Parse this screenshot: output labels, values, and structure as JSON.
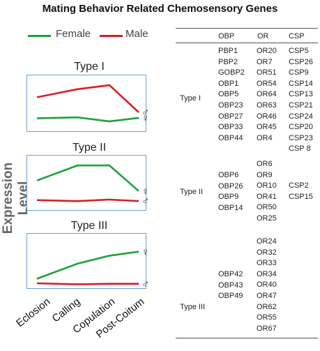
{
  "title": "Mating Behavior Related Chemosensory Genes",
  "colors": {
    "female": "#1aa33a",
    "male": "#d61f26",
    "panel_border": "#6aa3d6"
  },
  "chart_data": {
    "type": "line",
    "ylabel": "Expression Level",
    "categories": [
      "Eclosion",
      "Calling",
      "Copulation",
      "Post-Coitum"
    ],
    "legend": [
      {
        "label": "Female",
        "color": "#1aa33a"
      },
      {
        "label": "Male",
        "color": "#d61f26"
      }
    ],
    "ylim": [
      0,
      10
    ],
    "panels": [
      {
        "title": "Type I",
        "series": [
          {
            "key": "male",
            "symbol": "♂",
            "values": [
              6.2,
              7.8,
              8.6,
              3.2
            ]
          },
          {
            "key": "female",
            "symbol": "♀",
            "values": [
              2.0,
              2.2,
              1.4,
              2.1
            ]
          }
        ]
      },
      {
        "title": "Type II",
        "series": [
          {
            "key": "female",
            "symbol": "♀",
            "values": [
              5.6,
              8.6,
              8.6,
              3.5
            ]
          },
          {
            "key": "male",
            "symbol": "♂",
            "values": [
              1.7,
              1.5,
              1.8,
              1.5
            ]
          }
        ]
      },
      {
        "title": "Type III",
        "series": [
          {
            "key": "female",
            "symbol": "♀",
            "values": [
              1.6,
              4.6,
              6.2,
              7.0
            ]
          },
          {
            "key": "male",
            "symbol": "♂",
            "values": [
              0.7,
              0.5,
              0.6,
              0.6
            ]
          }
        ]
      }
    ]
  },
  "table": {
    "headers": [
      "OBP",
      "OR",
      "CSP"
    ],
    "groups": [
      {
        "label": "Type I",
        "OBP": [
          "PBP1",
          "PBP2",
          "GOBP2",
          "OBP1",
          "OBP5",
          "OBP23",
          "OBP27",
          "OBP33",
          "OBP44"
        ],
        "OR": [
          "OR20",
          "OR7",
          "OR51",
          "OR54",
          "OR64",
          "OR63",
          "OR46",
          "OR45",
          "OR4"
        ],
        "CSP": [
          "CSP5",
          "CSP26",
          "CSP9",
          "CSP14",
          "CSP13",
          "CSP21",
          "CSP24",
          "CSP20",
          "CSP23",
          "CSP 8"
        ]
      },
      {
        "label": "Type II",
        "OBP": [
          "OBP6",
          "OBP26",
          "OBP9",
          "OBP14"
        ],
        "OR": [
          "OR6",
          "OR9",
          "OR10",
          "OR41",
          "OR50",
          "OR25"
        ],
        "CSP": [
          "CSP2",
          "CSP15"
        ]
      },
      {
        "label": "Type III",
        "OBP": [
          "OBP42",
          "OBP43",
          "OBP49"
        ],
        "OR": [
          "OR24",
          "OR32",
          "OR33",
          "OR34",
          "OR40",
          "OR47",
          "OR62",
          "OR55",
          "OR67"
        ],
        "CSP": []
      }
    ]
  }
}
